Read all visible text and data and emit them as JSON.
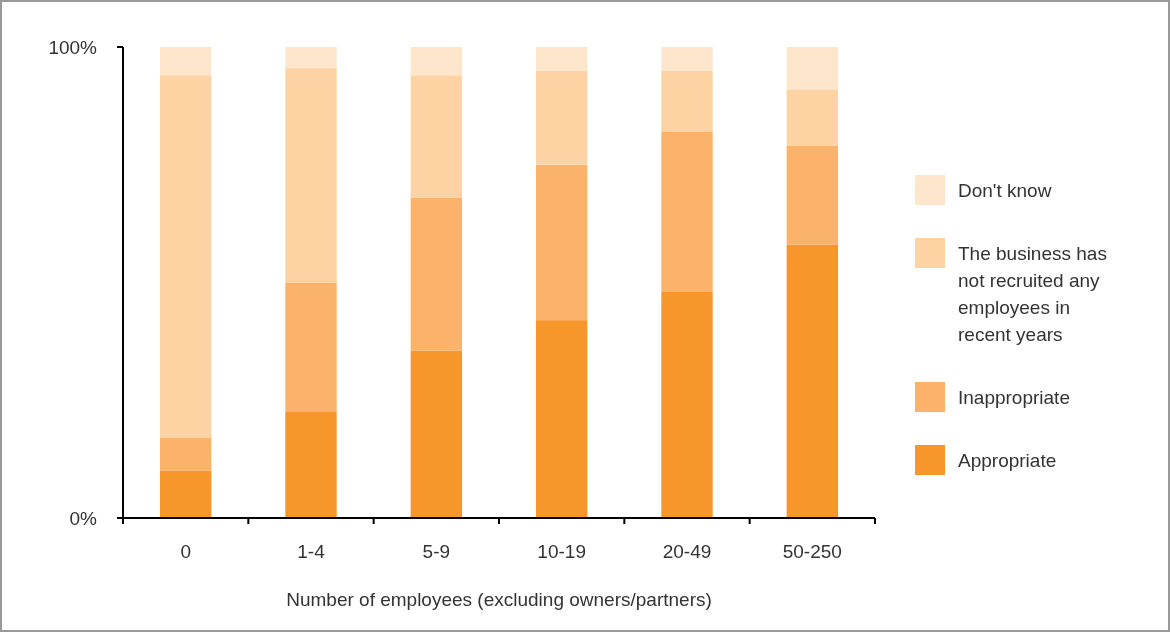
{
  "chart_data": {
    "type": "bar",
    "stacked": true,
    "xlabel": "Number of employees (excluding owners/partners)",
    "categories": [
      "0",
      "1-4",
      "5-9",
      "10-19",
      "20-49",
      "50-250"
    ],
    "series": [
      {
        "name": "Appropriate",
        "color": "#f7962a",
        "values": [
          10,
          22.5,
          35.5,
          42,
          48,
          58
        ]
      },
      {
        "name": "Inappropriate",
        "color": "#fbb36b",
        "values": [
          7,
          27.5,
          32.5,
          33,
          34,
          21
        ]
      },
      {
        "name": "The business has not recruited any employees in recent years",
        "color": "#fdd3a3",
        "values": [
          77,
          45.5,
          26,
          20,
          13,
          12
        ]
      },
      {
        "name": "Don't know",
        "color": "#fee6cc",
        "values": [
          6,
          4.5,
          6,
          5,
          5,
          9
        ]
      }
    ],
    "ylim": [
      0,
      100
    ],
    "yticks": [
      {
        "value": 0,
        "label": "0%"
      },
      {
        "value": 100,
        "label": "100%"
      }
    ],
    "grid": false,
    "legend": "right"
  }
}
